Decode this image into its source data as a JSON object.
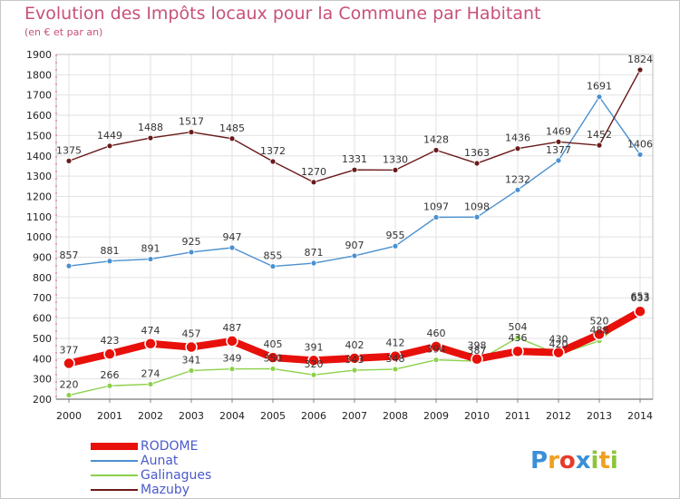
{
  "header": {
    "title": "Evolution des Impôts locaux pour la Commune par Habitant",
    "subtitle": "(en € et par an)"
  },
  "logo": {
    "text": "Proxiti"
  },
  "colors": {
    "title": "#c8507a",
    "grid": "#e2e2e2",
    "axis_ticks": "#e0405a"
  },
  "chart_data": {
    "type": "line",
    "title": "Evolution des Impôts locaux pour la Commune par Habitant",
    "subtitle": "(en € et par an)",
    "xlabel": "",
    "ylabel": "",
    "x": [
      2000,
      2001,
      2002,
      2003,
      2004,
      2005,
      2006,
      2007,
      2008,
      2009,
      2010,
      2011,
      2012,
      2013,
      2014
    ],
    "ylim": [
      200,
      1900
    ],
    "yticks": [
      200,
      300,
      400,
      500,
      600,
      700,
      800,
      900,
      1000,
      1100,
      1200,
      1300,
      1400,
      1500,
      1600,
      1700,
      1800,
      1900
    ],
    "grid": true,
    "legend_position": "bottom-left",
    "series": [
      {
        "name": "RODOME",
        "color": "#e8100a",
        "width": 8,
        "marker": 6,
        "values": [
          377,
          423,
          474,
          457,
          487,
          405,
          391,
          402,
          412,
          460,
          398,
          436,
          430,
          520,
          633
        ],
        "labels": [
          "377",
          "423",
          "474",
          "457",
          "487",
          "405",
          "391",
          "402",
          "412",
          "460",
          "398",
          "436",
          "430",
          "520",
          "633"
        ]
      },
      {
        "name": "Aunat",
        "color": "#4a90d0",
        "width": 1.4,
        "marker": 3,
        "values": [
          857,
          881,
          891,
          925,
          947,
          855,
          871,
          907,
          955,
          1097,
          1098,
          1232,
          1377,
          1691,
          1406
        ],
        "labels": [
          "857",
          "881",
          "891",
          "925",
          "947",
          "855",
          "871",
          "907",
          "955",
          "1097",
          "1098",
          "1232",
          "1377",
          "1691",
          "1406"
        ]
      },
      {
        "name": "Galinagues",
        "color": "#8cd04a",
        "width": 1.4,
        "marker": 3,
        "values": [
          220,
          266,
          274,
          341,
          349,
          350,
          320,
          343,
          348,
          394,
          387,
          504,
          420,
          488,
          653
        ],
        "labels": [
          "220",
          "266",
          "274",
          "341",
          "349",
          "350",
          "320",
          "343",
          "348",
          "394",
          "387",
          "504",
          "420",
          "488",
          "653"
        ]
      },
      {
        "name": "Mazuby",
        "color": "#6a1a1a",
        "width": 1.4,
        "marker": 3,
        "values": [
          1375,
          1449,
          1488,
          1517,
          1485,
          1372,
          1270,
          1331,
          1330,
          1428,
          1363,
          1436,
          1469,
          1452,
          1824
        ],
        "labels": [
          "1375",
          "1449",
          "1488",
          "1517",
          "1485",
          "1372",
          "1270",
          "1331",
          "1330",
          "1428",
          "1363",
          "1436",
          "1469",
          "1452",
          "1824"
        ]
      }
    ]
  }
}
